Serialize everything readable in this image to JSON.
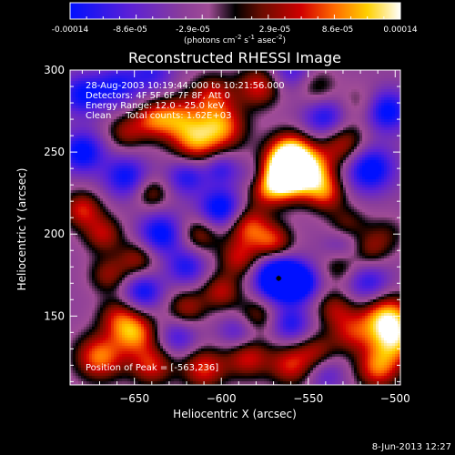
{
  "colorbar": {
    "tick_labels": [
      "-0.00014",
      "-8.6e-05",
      "-2.9e-05",
      "2.9e-05",
      "8.6e-05",
      "0.00014"
    ],
    "units_label": "(photons cm",
    "units_exp1": "-2",
    "units_mid": " s",
    "units_exp2": "-1",
    "units_mid2": " asec",
    "units_exp3": "-2",
    "units_end": ")"
  },
  "chart_data": {
    "type": "heatmap",
    "title": "Reconstructed RHESSI Image",
    "xlabel": "Heliocentric X (arcsec)",
    "ylabel": "Heliocentric Y (arcsec)",
    "xlim": [
      -687,
      -497
    ],
    "ylim": [
      108,
      300
    ],
    "x_ticks": [
      -650,
      -600,
      -550,
      -500
    ],
    "y_ticks": [
      150,
      200,
      250,
      300
    ],
    "x_tick_labels": [
      "−650",
      "−600",
      "−550",
      "−500"
    ],
    "y_tick_labels": [
      "150",
      "200",
      "250",
      "300"
    ],
    "color_range": [
      -0.00014,
      0.00014
    ],
    "peak": {
      "x": -563,
      "y": 236
    },
    "info_lines": [
      "28-Aug-2003 10:19:44.000 to 10:21:56.000",
      "Detectors: 4F 5F 6F 7F 8F, Att 0",
      "Energy Range: 12.0 - 25.0 keV",
      "Clean     Total counts: 1.62E+03"
    ],
    "peak_label": "Position of Peak = [-563,236]"
  },
  "footer": {
    "timestamp": "8-Jun-2013 12:27"
  },
  "colors": {
    "background": "#000000",
    "text": "#ffffff",
    "colormap_low": "#0000ff",
    "colormap_mid": "#000000",
    "colormap_high": "#ffffff"
  }
}
